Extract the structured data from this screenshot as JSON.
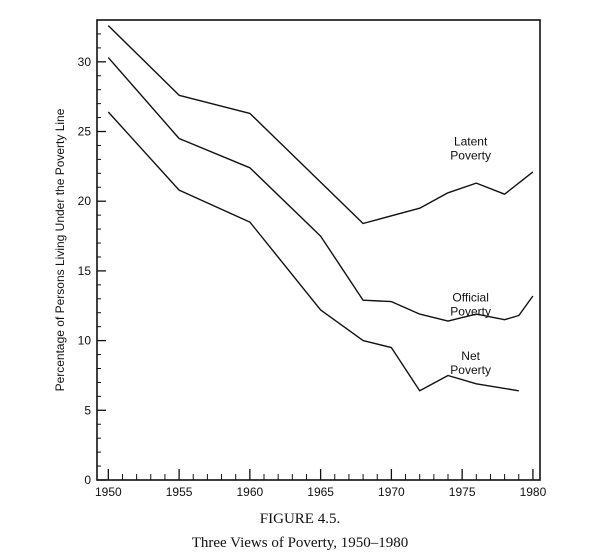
{
  "figure": {
    "label": "FIGURE 4.5.",
    "title": "Three Views of Poverty, 1950–1980"
  },
  "chart_data": {
    "type": "line",
    "title": "Three Views of Poverty, 1950–1980",
    "xlabel": "",
    "ylabel": "Percentage of Persons Living Under the Poverty Line",
    "xlim": [
      1949.2,
      1980.5
    ],
    "ylim": [
      0,
      33
    ],
    "x_ticks": [
      1950,
      1955,
      1960,
      1965,
      1970,
      1975,
      1980
    ],
    "y_ticks": [
      0,
      5,
      10,
      15,
      20,
      25,
      30
    ],
    "grid": false,
    "legend": "none",
    "series": [
      {
        "name": "Latent Poverty",
        "label_lines": [
          "Latent",
          "Poverty"
        ],
        "x": [
          1950,
          1952.5,
          1955,
          1960,
          1968,
          1972,
          1974,
          1976,
          1978,
          1980
        ],
        "y": [
          32.6,
          30.1,
          27.6,
          26.3,
          18.4,
          19.5,
          20.6,
          21.3,
          20.5,
          22.1
        ]
      },
      {
        "name": "Official Poverty",
        "label_lines": [
          "Official",
          "Poverty"
        ],
        "x": [
          1950,
          1955,
          1960,
          1965,
          1968,
          1970,
          1972,
          1974,
          1976,
          1978,
          1979,
          1980
        ],
        "y": [
          30.3,
          24.5,
          22.4,
          17.5,
          12.9,
          12.8,
          11.9,
          11.4,
          11.9,
          11.5,
          11.8,
          13.2
        ]
      },
      {
        "name": "Net Poverty",
        "label_lines": [
          "Net",
          "Poverty"
        ],
        "x": [
          1950,
          1955,
          1960,
          1965,
          1968,
          1970,
          1972,
          1974,
          1976,
          1979
        ],
        "y": [
          26.4,
          20.8,
          18.5,
          12.2,
          10.0,
          9.5,
          6.4,
          7.5,
          6.9,
          6.4
        ]
      }
    ]
  }
}
